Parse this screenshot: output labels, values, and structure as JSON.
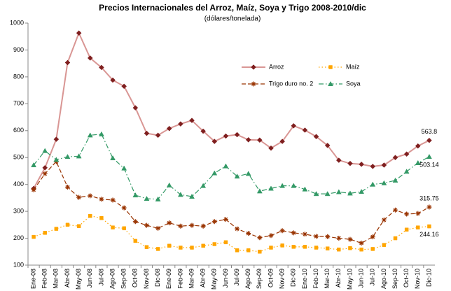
{
  "chart_data": {
    "type": "line",
    "title": "Precios Internacionales del Arroz, Maíz, Soya y Trigo 2008-2010/dic",
    "subtitle": "(dólares/tonelada)",
    "categories": [
      "Ene-08",
      "Feb-08",
      "Mar-08",
      "Abr-08",
      "May-08",
      "Jun-08",
      "Jul-08",
      "Ago-08",
      "Sep-08",
      "Oct-08",
      "Nov-08",
      "Dic-08",
      "Ene-09",
      "Feb-09",
      "Mar-09",
      "Abr-09",
      "May-09",
      "Jun-09",
      "Jul-09",
      "Ago-09",
      "Sep-09",
      "Oct-09",
      "Nov-09",
      "Dic-09",
      "Ene-10",
      "Feb-10",
      "Mar-10",
      "Abr-10",
      "May-10",
      "Jun-10",
      "Jul-10",
      "Ago-10",
      "Sep-10",
      "Oct-10",
      "Nov-10",
      "Dic-10"
    ],
    "ylim": [
      100,
      1000
    ],
    "yticks": [
      100,
      200,
      300,
      400,
      500,
      600,
      700,
      800,
      900,
      1000
    ],
    "grid": false,
    "series": [
      {
        "name": "Arroz",
        "color": "#7f1f1f",
        "line_color": "#d99694",
        "marker": "diamond",
        "dash": "solid",
        "values": [
          385,
          462,
          568,
          853,
          963,
          870,
          835,
          788,
          765,
          685,
          590,
          583,
          608,
          625,
          638,
          598,
          560,
          580,
          585,
          566,
          565,
          535,
          560,
          618,
          602,
          578,
          545,
          490,
          478,
          475,
          467,
          472,
          500,
          513,
          543,
          563.8
        ]
      },
      {
        "name": "Maíz",
        "color": "#ffa500",
        "line_color": "#ffa500",
        "marker": "square",
        "dash": "dot",
        "values": [
          205,
          220,
          235,
          250,
          245,
          283,
          275,
          240,
          237,
          190,
          167,
          160,
          172,
          165,
          165,
          172,
          178,
          185,
          155,
          155,
          150,
          165,
          173,
          168,
          168,
          165,
          162,
          158,
          163,
          158,
          160,
          175,
          200,
          232,
          240,
          244.16
        ]
      },
      {
        "name": "Trigo duro no. 2",
        "color": "#993300",
        "line_color": "#993300",
        "marker": "asterisk",
        "dash": "dash",
        "values": [
          380,
          440,
          485,
          390,
          352,
          358,
          345,
          342,
          313,
          262,
          248,
          237,
          257,
          245,
          248,
          245,
          262,
          270,
          235,
          218,
          202,
          210,
          228,
          220,
          215,
          207,
          206,
          200,
          196,
          182,
          205,
          268,
          305,
          290,
          292,
          315.75
        ]
      },
      {
        "name": "Soya",
        "color": "#339966",
        "line_color": "#339966",
        "marker": "triangle",
        "dash": "dashdot",
        "values": [
          472,
          525,
          492,
          503,
          505,
          583,
          587,
          498,
          460,
          360,
          347,
          345,
          397,
          362,
          355,
          395,
          442,
          468,
          430,
          440,
          375,
          385,
          395,
          395,
          382,
          365,
          365,
          372,
          367,
          373,
          400,
          405,
          415,
          448,
          480,
          503.14
        ]
      }
    ]
  }
}
